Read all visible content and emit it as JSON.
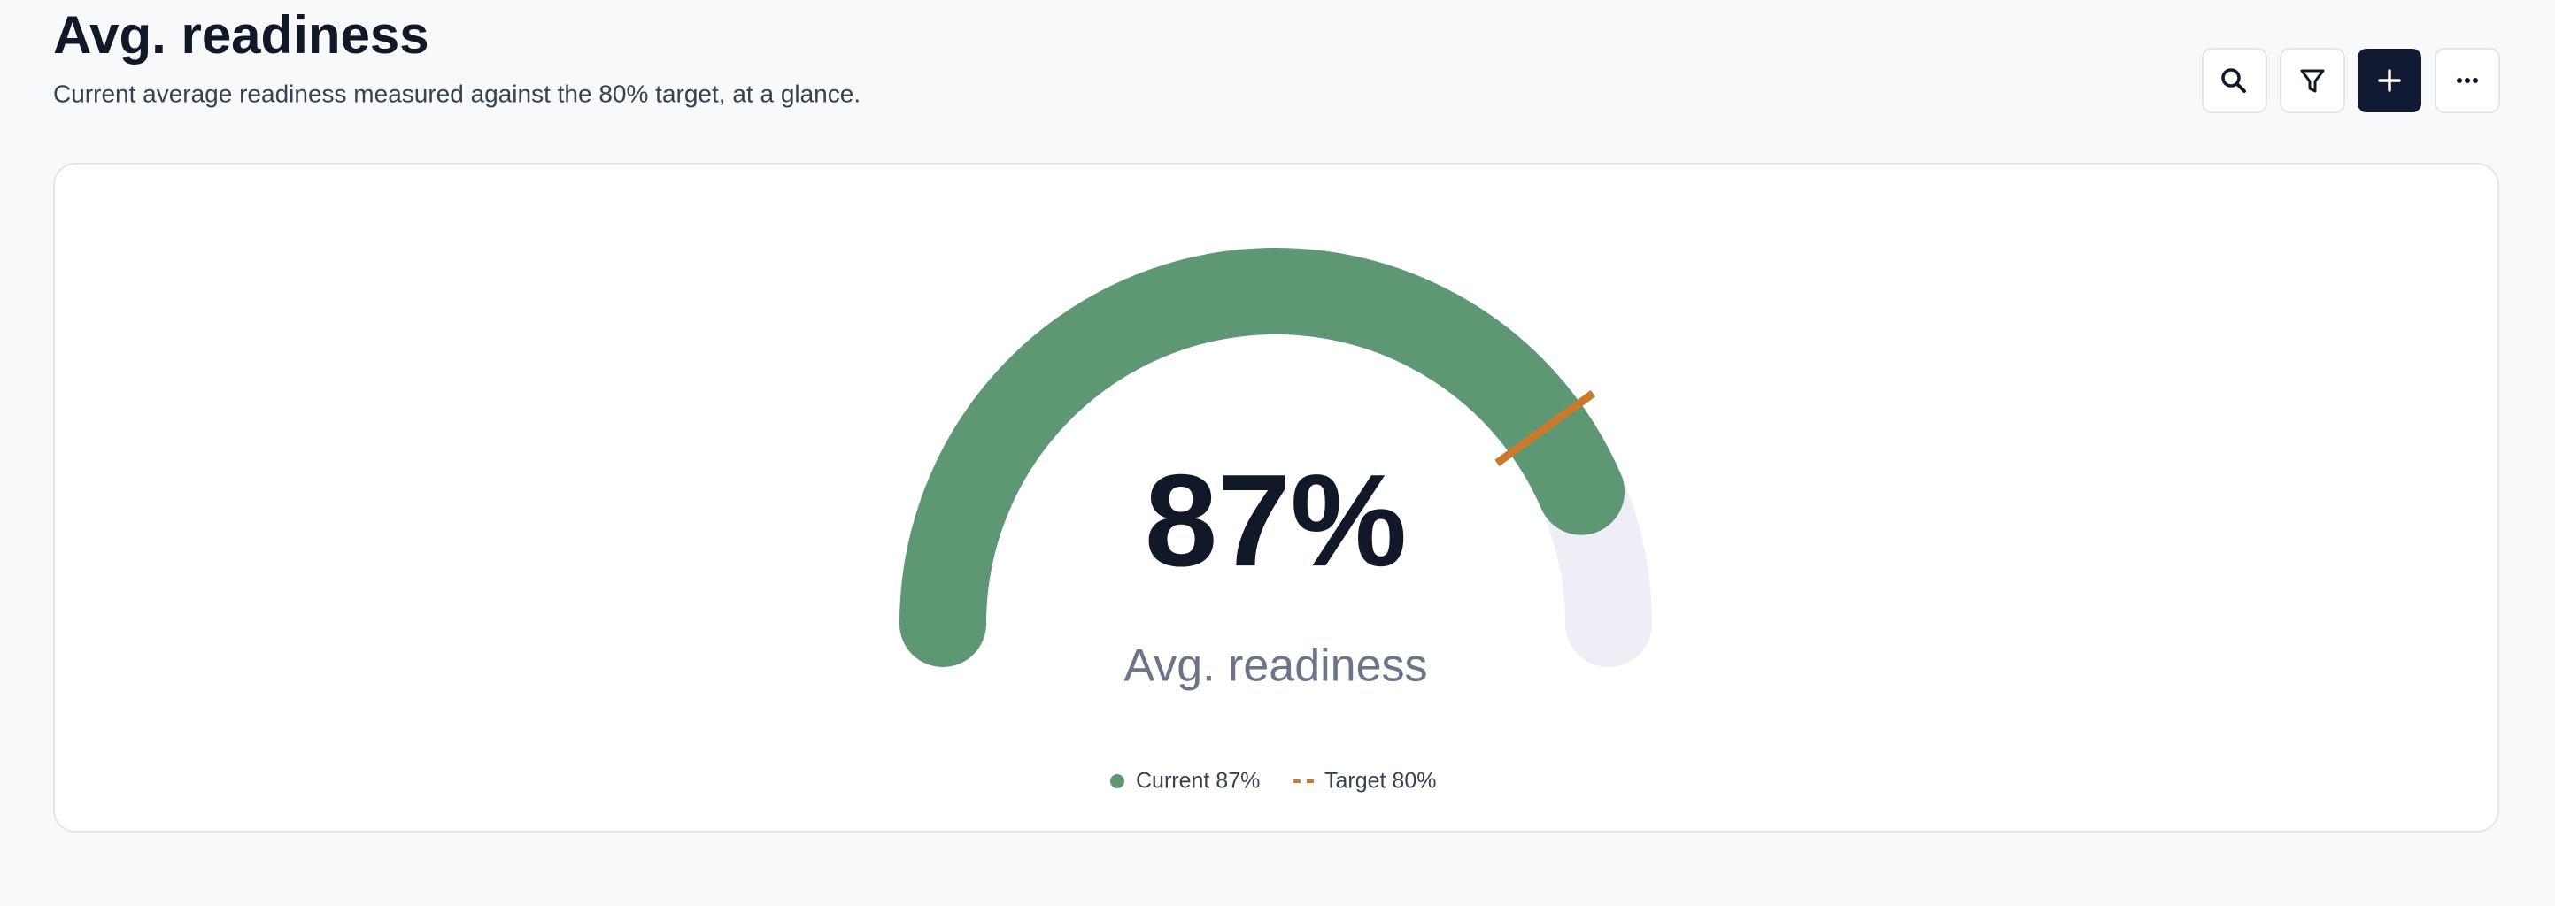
{
  "chart_data": {
    "type": "gauge",
    "title": "Avg. readiness",
    "subtitle": "Current average readiness measured against the 80% target, at a glance.",
    "label": "Avg. readiness",
    "ylim": [
      0,
      100
    ],
    "track_color": "#eeeef6",
    "series": [
      {
        "name": "Current 87%",
        "color": "#5e9773",
        "values": [
          87
        ],
        "value_labels": [
          "87%"
        ]
      }
    ],
    "target": {
      "name": "Target 80%",
      "value": 80,
      "color": "#c97a2c"
    }
  }
}
